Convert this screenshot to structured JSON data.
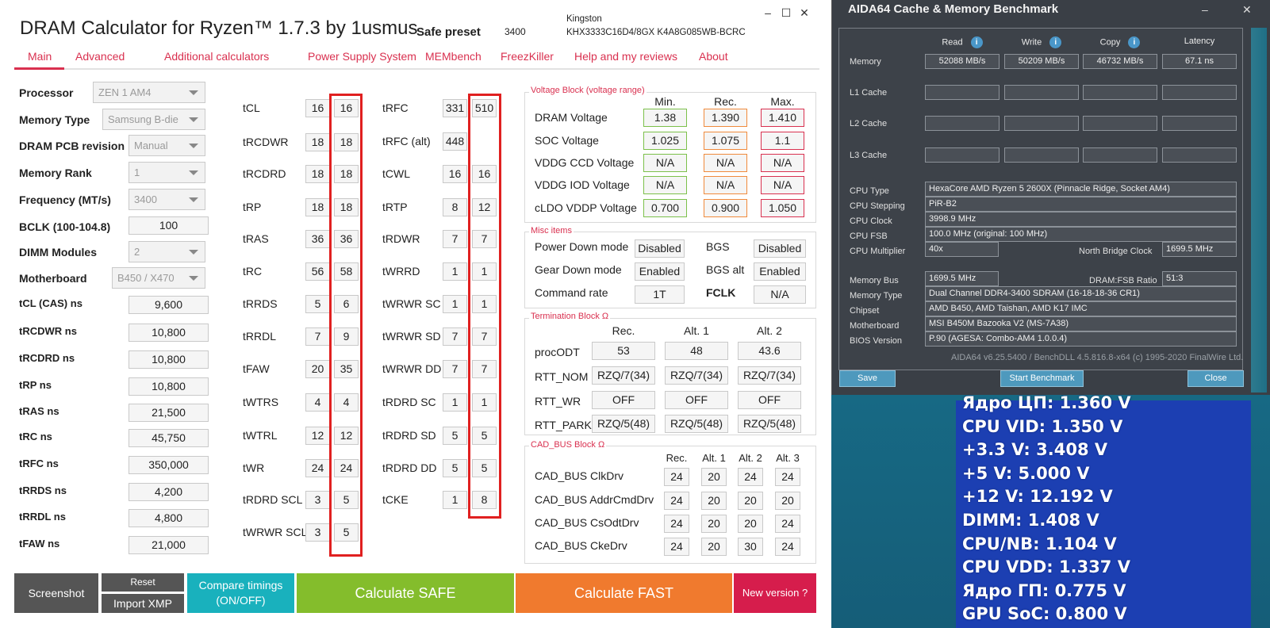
{
  "dram": {
    "title": "DRAM Calculator for Ryzen™ 1.7.3 by 1usmus",
    "preset_label": "Safe preset",
    "preset_value": "3400",
    "kingston_line1": "Kingston",
    "kingston_line2": "KHX3333C16D4/8GX K4A8G085WB-BCRC",
    "window_controls": [
      "–",
      "☐",
      "✕"
    ],
    "tabs": [
      "Main",
      "Advanced",
      "Additional calculators",
      "Power Supply System",
      "MEMbench",
      "FreezKiller",
      "Help and my reviews",
      "About"
    ],
    "left_selects": [
      {
        "label": "Processor",
        "value": "ZEN 1 AM4"
      },
      {
        "label": "Memory Type",
        "value": "Samsung B-die"
      },
      {
        "label": "DRAM PCB revision",
        "value": "Manual"
      },
      {
        "label": "Memory Rank",
        "value": "1"
      },
      {
        "label": "Frequency (MT/s)",
        "value": "3400"
      },
      {
        "label": "BCLK (100-104.8)",
        "value": "100"
      },
      {
        "label": "DIMM Modules",
        "value": "2"
      },
      {
        "label": "Motherboard",
        "value": "B450 / X470"
      }
    ],
    "left_ns": [
      {
        "label": "tCL (CAS) ns",
        "value": "9,600"
      },
      {
        "label": "tRCDWR ns",
        "value": "10,800"
      },
      {
        "label": "tRCDRD ns",
        "value": "10,800"
      },
      {
        "label": "tRP ns",
        "value": "10,800"
      },
      {
        "label": "tRAS ns",
        "value": "21,500"
      },
      {
        "label": "tRC ns",
        "value": "45,750"
      },
      {
        "label": "tRFC ns",
        "value": "350,000"
      },
      {
        "label": "tRRDS ns",
        "value": "4,200"
      },
      {
        "label": "tRRDL ns",
        "value": "4,800"
      },
      {
        "label": "tFAW ns",
        "value": "21,000"
      }
    ],
    "timings_col1": [
      {
        "name": "tCL",
        "a": "16",
        "b": "16"
      },
      {
        "name": "tRCDWR",
        "a": "18",
        "b": "18"
      },
      {
        "name": "tRCDRD",
        "a": "18",
        "b": "18"
      },
      {
        "name": "tRP",
        "a": "18",
        "b": "18"
      },
      {
        "name": "tRAS",
        "a": "36",
        "b": "36"
      },
      {
        "name": "tRC",
        "a": "56",
        "b": "58"
      },
      {
        "name": "tRRDS",
        "a": "5",
        "b": "6"
      },
      {
        "name": "tRRDL",
        "a": "7",
        "b": "9"
      },
      {
        "name": "tFAW",
        "a": "20",
        "b": "35"
      },
      {
        "name": "tWTRS",
        "a": "4",
        "b": "4"
      },
      {
        "name": "tWTRL",
        "a": "12",
        "b": "12"
      },
      {
        "name": "tWR",
        "a": "24",
        "b": "24"
      },
      {
        "name": "tRDRD SCL",
        "a": "3",
        "b": "5"
      },
      {
        "name": "tWRWR SCL",
        "a": "3",
        "b": "5"
      }
    ],
    "timings_col2": [
      {
        "name": "tRFC",
        "a": "331",
        "b": "510"
      },
      {
        "name": "tRFC (alt)",
        "a": "448",
        "b": ""
      },
      {
        "name": "tCWL",
        "a": "16",
        "b": "16"
      },
      {
        "name": "tRTP",
        "a": "8",
        "b": "12"
      },
      {
        "name": "tRDWR",
        "a": "7",
        "b": "7"
      },
      {
        "name": "tWRRD",
        "a": "1",
        "b": "1"
      },
      {
        "name": "tWRWR SC",
        "a": "1",
        "b": "1"
      },
      {
        "name": "tWRWR SD",
        "a": "7",
        "b": "7"
      },
      {
        "name": "tWRWR DD",
        "a": "7",
        "b": "7"
      },
      {
        "name": "tRDRD SC",
        "a": "1",
        "b": "1"
      },
      {
        "name": "tRDRD SD",
        "a": "5",
        "b": "5"
      },
      {
        "name": "tRDRD DD",
        "a": "5",
        "b": "5"
      },
      {
        "name": "tCKE",
        "a": "1",
        "b": "8"
      }
    ],
    "voltage": {
      "heading": "Voltage Block (voltage range)",
      "cols": [
        "Min.",
        "Rec.",
        "Max."
      ],
      "rows": [
        {
          "label": "DRAM Voltage",
          "min": "1.38",
          "rec": "1.390",
          "max": "1.410"
        },
        {
          "label": "SOC Voltage",
          "min": "1.025",
          "rec": "1.075",
          "max": "1.1"
        },
        {
          "label": "VDDG  CCD Voltage",
          "min": "N/A",
          "rec": "N/A",
          "max": "N/A"
        },
        {
          "label": "VDDG  IOD Voltage",
          "min": "N/A",
          "rec": "N/A",
          "max": "N/A"
        },
        {
          "label": "cLDO VDDP Voltage",
          "min": "0.700",
          "rec": "0.900",
          "max": "1.050"
        }
      ]
    },
    "misc": {
      "heading": "Misc items",
      "power_down_label": "Power Down mode",
      "power_down": "Disabled",
      "bgs_label": "BGS",
      "bgs": "Disabled",
      "gear_down_label": "Gear Down mode",
      "gear_down": "Enabled",
      "bgs_alt_label": "BGS alt",
      "bgs_alt": "Enabled",
      "cmd_rate_label": "Command rate",
      "cmd_rate": "1T",
      "fclk_label": "FCLK",
      "fclk": "N/A"
    },
    "termination": {
      "heading": "Termination Block Ω",
      "cols": [
        "Rec.",
        "Alt. 1",
        "Alt. 2"
      ],
      "rows": [
        {
          "label": "procODT",
          "v": [
            "53",
            "48",
            "43.6"
          ]
        },
        {
          "label": "RTT_NOM",
          "v": [
            "RZQ/7(34)",
            "RZQ/7(34)",
            "RZQ/7(34)"
          ]
        },
        {
          "label": "RTT_WR",
          "v": [
            "OFF",
            "OFF",
            "OFF"
          ]
        },
        {
          "label": "RTT_PARK",
          "v": [
            "RZQ/5(48)",
            "RZQ/5(48)",
            "RZQ/5(48)"
          ]
        }
      ]
    },
    "cadbus": {
      "heading": "CAD_BUS Block Ω",
      "cols": [
        "Rec.",
        "Alt. 1",
        "Alt. 2",
        "Alt. 3"
      ],
      "rows": [
        {
          "label": "CAD_BUS ClkDrv",
          "v": [
            "24",
            "20",
            "24",
            "24"
          ]
        },
        {
          "label": "CAD_BUS AddrCmdDrv",
          "v": [
            "24",
            "20",
            "20",
            "20"
          ]
        },
        {
          "label": "CAD_BUS CsOdtDrv",
          "v": [
            "24",
            "20",
            "20",
            "24"
          ]
        },
        {
          "label": "CAD_BUS CkeDrv",
          "v": [
            "24",
            "20",
            "30",
            "24"
          ]
        }
      ]
    },
    "buttons": {
      "screenshot": "Screenshot",
      "reset": "Reset",
      "import_xmp": "Import XMP",
      "compare_1": "Compare timings",
      "compare_2": "(ON/OFF)",
      "calc_safe": "Calculate SAFE",
      "calc_fast": "Calculate FAST",
      "new_version": "New version ?"
    }
  },
  "aida": {
    "title": "AIDA64 Cache & Memory Benchmark",
    "window_controls": [
      "–",
      "✕"
    ],
    "cols": [
      "Read",
      "Write",
      "Copy",
      "Latency"
    ],
    "rows": [
      {
        "label": "Memory",
        "v": [
          "52088 MB/s",
          "50209 MB/s",
          "46732 MB/s",
          "67.1 ns"
        ]
      },
      {
        "label": "L1 Cache",
        "v": [
          "",
          "",
          "",
          ""
        ]
      },
      {
        "label": "L2 Cache",
        "v": [
          "",
          "",
          "",
          ""
        ]
      },
      {
        "label": "L3 Cache",
        "v": [
          "",
          "",
          "",
          ""
        ]
      }
    ],
    "cpu_type_label": "CPU Type",
    "cpu_type": "HexaCore AMD Ryzen 5 2600X  (Pinnacle Ridge, Socket AM4)",
    "cpu_stepping_label": "CPU Stepping",
    "cpu_stepping": "PiR-B2",
    "cpu_clock_label": "CPU Clock",
    "cpu_clock": "3998.9 MHz",
    "cpu_fsb_label": "CPU FSB",
    "cpu_fsb": "100.0 MHz  (original: 100 MHz)",
    "cpu_mult_label": "CPU Multiplier",
    "cpu_mult": "40x",
    "nb_clock_label": "North Bridge Clock",
    "nb_clock": "1699.5 MHz",
    "mem_bus_label": "Memory Bus",
    "mem_bus": "1699.5 MHz",
    "ratio_label": "DRAM:FSB Ratio",
    "ratio": "51:3",
    "mem_type_label": "Memory Type",
    "mem_type": "Dual Channel DDR4-3400 SDRAM  (16-18-18-36 CR1)",
    "chipset_label": "Chipset",
    "chipset": "AMD B450, AMD Taishan, AMD K17 IMC",
    "mobo_label": "Motherboard",
    "mobo": "MSI B450M Bazooka V2 (MS-7A38)",
    "bios_label": "BIOS Version",
    "bios": "P.90  (AGESA: Combo-AM4 1.0.0.4)",
    "footer": "AIDA64 v6.25.5400 / BenchDLL 4.5.816.8-x64  (c) 1995-2020 FinalWire Ltd.",
    "save": "Save",
    "start": "Start Benchmark",
    "close": "Close"
  },
  "osd": [
    "Ядро ЦП: 1.360 V",
    "CPU VID: 1.350 V",
    "+3.3 V: 3.408 V",
    "+5 V: 5.000 V",
    "+12 V: 12.192 V",
    "DIMM: 1.408 V",
    "CPU/NB: 1.104 V",
    "CPU VDD: 1.337 V",
    "Ядро ГП: 0.775 V",
    "GPU SoC: 0.800 V"
  ]
}
